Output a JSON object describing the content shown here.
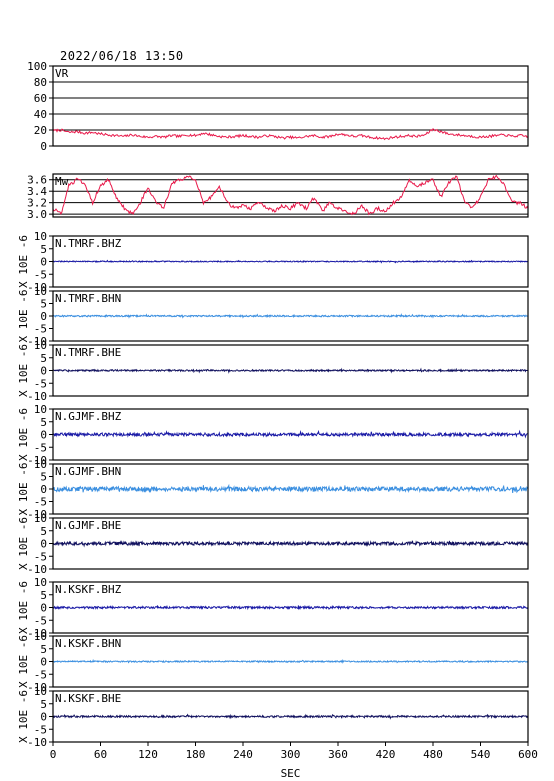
{
  "header": {
    "timestamp": "2022/06/18 13:50"
  },
  "colors": {
    "frame": "#000000",
    "vr_line": "#e8194a",
    "mw_line": "#e8194a",
    "bhz": "#1a1aa6",
    "bhn": "#3b8fe0",
    "bhe": "#10105e"
  },
  "chart_data": [
    {
      "type": "line",
      "label": "VR",
      "ylim": [
        0,
        100
      ],
      "yticks": [
        0,
        20,
        40,
        60,
        80,
        100
      ],
      "grid": true,
      "xlim": [
        0,
        600
      ],
      "color_key": "vr_line",
      "series": [
        {
          "x": [
            0,
            10,
            20,
            30,
            40,
            50,
            60,
            70,
            80,
            90,
            100,
            110,
            120,
            130,
            140,
            150,
            160,
            170,
            180,
            190,
            200,
            210,
            220,
            230,
            240,
            250,
            260,
            270,
            280,
            290,
            300,
            310,
            320,
            330,
            340,
            350,
            360,
            370,
            380,
            390,
            400,
            410,
            420,
            430,
            440,
            450,
            460,
            470,
            480,
            490,
            500,
            510,
            520,
            530,
            540,
            550,
            560,
            570,
            580,
            590,
            600
          ],
          "values": [
            19,
            20,
            17,
            18,
            16,
            17,
            15,
            14,
            13,
            12,
            14,
            12,
            11,
            12,
            11,
            13,
            12,
            14,
            13,
            16,
            14,
            12,
            11,
            12,
            13,
            12,
            11,
            13,
            12,
            10,
            11,
            10,
            12,
            13,
            11,
            12,
            15,
            14,
            12,
            13,
            11,
            10,
            9,
            11,
            12,
            13,
            12,
            14,
            21,
            18,
            15,
            14,
            13,
            12,
            11,
            12,
            13,
            14,
            12,
            13,
            12
          ]
        }
      ]
    },
    {
      "type": "line",
      "label": "Mw",
      "ylim": [
        2.95,
        3.7
      ],
      "yticks": [
        3.0,
        3.2,
        3.4,
        3.6
      ],
      "ytick_labels": [
        "3.0",
        "3.2",
        "3.4",
        "3.6"
      ],
      "grid": true,
      "xlim": [
        0,
        600
      ],
      "color_key": "mw_line",
      "series": [
        {
          "x": [
            0,
            10,
            20,
            30,
            40,
            50,
            60,
            70,
            80,
            90,
            100,
            110,
            120,
            130,
            140,
            150,
            160,
            170,
            180,
            190,
            200,
            210,
            220,
            230,
            240,
            250,
            260,
            270,
            280,
            290,
            300,
            310,
            320,
            330,
            340,
            350,
            360,
            370,
            380,
            390,
            400,
            410,
            420,
            430,
            440,
            450,
            460,
            470,
            480,
            490,
            500,
            510,
            520,
            530,
            540,
            550,
            560,
            570,
            580,
            590,
            600
          ],
          "values": [
            3.1,
            3.0,
            3.5,
            3.6,
            3.55,
            3.2,
            3.5,
            3.6,
            3.3,
            3.1,
            3.0,
            3.2,
            3.45,
            3.2,
            3.1,
            3.55,
            3.6,
            3.65,
            3.6,
            3.2,
            3.3,
            3.5,
            3.2,
            3.1,
            3.15,
            3.1,
            3.2,
            3.1,
            3.05,
            3.15,
            3.1,
            3.2,
            3.1,
            3.3,
            3.05,
            3.2,
            3.1,
            3.05,
            3.0,
            3.15,
            3.0,
            3.1,
            3.05,
            3.2,
            3.3,
            3.6,
            3.5,
            3.55,
            3.6,
            3.3,
            3.55,
            3.65,
            3.2,
            3.1,
            3.3,
            3.6,
            3.65,
            3.5,
            3.2,
            3.2,
            3.1
          ]
        }
      ]
    },
    {
      "type": "line",
      "label": "N.TMRF.BHZ",
      "ylim": [
        -10,
        10
      ],
      "yticks": [
        -10,
        -5,
        0,
        5,
        10
      ],
      "grid": false,
      "xlim": [
        0,
        600
      ],
      "color_key": "bhz",
      "amplitude": 0.2,
      "seed": 11,
      "series": [
        {
          "baseline": 0
        }
      ]
    },
    {
      "type": "line",
      "label": "N.TMRF.BHN",
      "ylim": [
        -10,
        10
      ],
      "yticks": [
        -10,
        -5,
        0,
        5,
        10
      ],
      "grid": false,
      "xlim": [
        0,
        600
      ],
      "color_key": "bhn",
      "amplitude": 0.3,
      "seed": 12,
      "series": [
        {
          "baseline": 0
        }
      ]
    },
    {
      "type": "line",
      "label": "N.TMRF.BHE",
      "ylim": [
        -10,
        10
      ],
      "yticks": [
        -10,
        -5,
        0,
        5,
        10
      ],
      "grid": false,
      "xlim": [
        0,
        600
      ],
      "color_key": "bhe",
      "amplitude": 0.3,
      "seed": 13,
      "series": [
        {
          "baseline": 0
        }
      ]
    },
    {
      "type": "line",
      "label": "N.GJMF.BHZ",
      "ylim": [
        -10,
        10
      ],
      "yticks": [
        -10,
        -5,
        0,
        5,
        10
      ],
      "grid": false,
      "xlim": [
        0,
        600
      ],
      "color_key": "bhz",
      "amplitude": 0.6,
      "seed": 21,
      "series": [
        {
          "baseline": 0
        }
      ]
    },
    {
      "type": "line",
      "label": "N.GJMF.BHN",
      "ylim": [
        -10,
        10
      ],
      "yticks": [
        -10,
        -5,
        0,
        5,
        10
      ],
      "grid": false,
      "xlim": [
        0,
        600
      ],
      "color_key": "bhn",
      "amplitude": 0.9,
      "seed": 22,
      "series": [
        {
          "baseline": 0
        }
      ]
    },
    {
      "type": "line",
      "label": "N.GJMF.BHE",
      "ylim": [
        -10,
        10
      ],
      "yticks": [
        -10,
        -5,
        0,
        5,
        10
      ],
      "grid": false,
      "xlim": [
        0,
        600
      ],
      "color_key": "bhe",
      "amplitude": 0.6,
      "seed": 23,
      "series": [
        {
          "baseline": 0
        }
      ]
    },
    {
      "type": "line",
      "label": "N.KSKF.BHZ",
      "ylim": [
        -10,
        10
      ],
      "yticks": [
        -10,
        -5,
        0,
        5,
        10
      ],
      "grid": false,
      "xlim": [
        0,
        600
      ],
      "color_key": "bhz",
      "amplitude": 0.4,
      "seed": 31,
      "series": [
        {
          "baseline": 0
        }
      ]
    },
    {
      "type": "line",
      "label": "N.KSKF.BHN",
      "ylim": [
        -10,
        10
      ],
      "yticks": [
        -10,
        -5,
        0,
        5,
        10
      ],
      "grid": false,
      "xlim": [
        0,
        600
      ],
      "color_key": "bhn",
      "amplitude": 0.25,
      "seed": 32,
      "series": [
        {
          "baseline": 0
        }
      ]
    },
    {
      "type": "line",
      "label": "N.KSKF.BHE",
      "ylim": [
        -10,
        10
      ],
      "yticks": [
        -10,
        -5,
        0,
        5,
        10
      ],
      "grid": false,
      "xlim": [
        0,
        600
      ],
      "color_key": "bhe",
      "amplitude": 0.35,
      "seed": 33,
      "series": [
        {
          "baseline": 0
        }
      ]
    }
  ],
  "seismo_ylabel": "X 10E -6",
  "xaxis": {
    "ticks": [
      0,
      60,
      120,
      180,
      240,
      300,
      360,
      420,
      480,
      540,
      600
    ],
    "label": "SEC"
  }
}
